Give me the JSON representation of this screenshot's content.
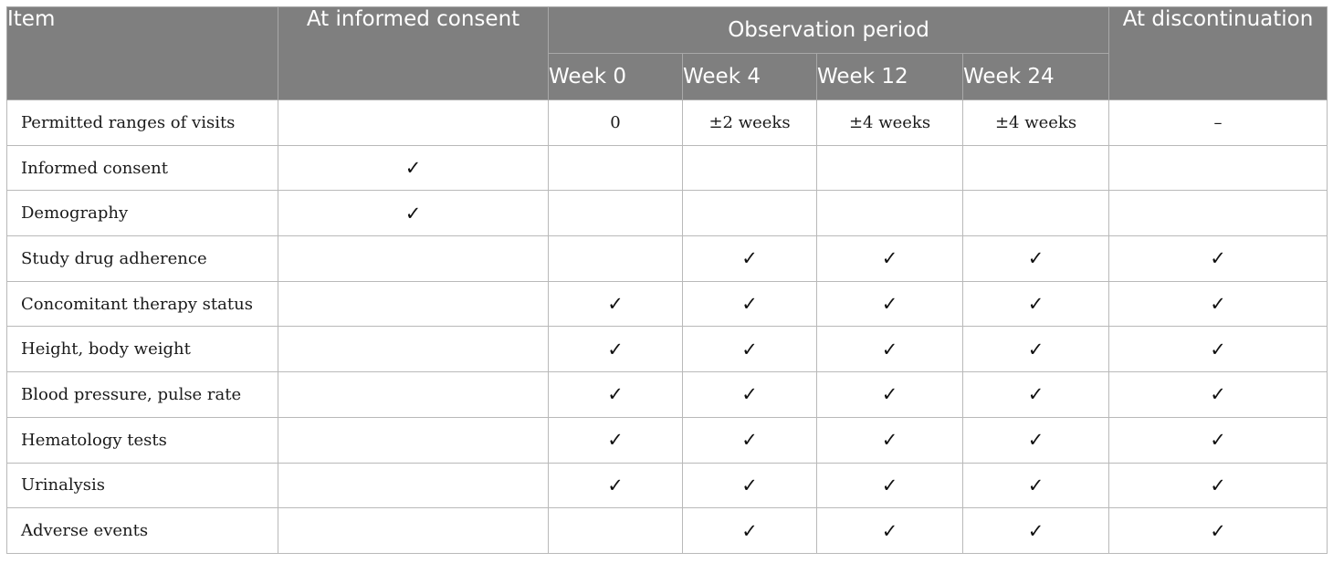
{
  "table": {
    "headers": {
      "item": "Item",
      "consent": "At informed consent",
      "observation": "Observation period",
      "discontinuation": "At discontinuation",
      "weeks": [
        "Week 0",
        "Week 4",
        "Week 12",
        "Week 24"
      ]
    },
    "rows": [
      {
        "item": "Permitted ranges of visits",
        "consent": "",
        "w0": "0",
        "w4": "±2 weeks",
        "w12": "±4 weeks",
        "w24": "±4 weeks",
        "disc": "–"
      },
      {
        "item": "Informed consent",
        "consent": "✓",
        "w0": "",
        "w4": "",
        "w12": "",
        "w24": "",
        "disc": ""
      },
      {
        "item": "Demography",
        "consent": "✓",
        "w0": "",
        "w4": "",
        "w12": "",
        "w24": "",
        "disc": ""
      },
      {
        "item": "Study drug adherence",
        "consent": "",
        "w0": "",
        "w4": "✓",
        "w12": "✓",
        "w24": "✓",
        "disc": "✓"
      },
      {
        "item": "Concomitant therapy status",
        "consent": "",
        "w0": "✓",
        "w4": "✓",
        "w12": "✓",
        "w24": "✓",
        "disc": "✓"
      },
      {
        "item": "Height, body weight",
        "consent": "",
        "w0": "✓",
        "w4": "✓",
        "w12": "✓",
        "w24": "✓",
        "disc": "✓"
      },
      {
        "item": "Blood pressure, pulse rate",
        "consent": "",
        "w0": "✓",
        "w4": "✓",
        "w12": "✓",
        "w24": "✓",
        "disc": "✓"
      },
      {
        "item": "Hematology tests",
        "consent": "",
        "w0": "✓",
        "w4": "✓",
        "w12": "✓",
        "w24": "✓",
        "disc": "✓"
      },
      {
        "item": "Urinalysis",
        "consent": "",
        "w0": "✓",
        "w4": "✓",
        "w12": "✓",
        "w24": "✓",
        "disc": "✓"
      },
      {
        "item": "Adverse events",
        "consent": "",
        "w0": "",
        "w4": "✓",
        "w12": "✓",
        "w24": "✓",
        "disc": "✓"
      }
    ]
  }
}
